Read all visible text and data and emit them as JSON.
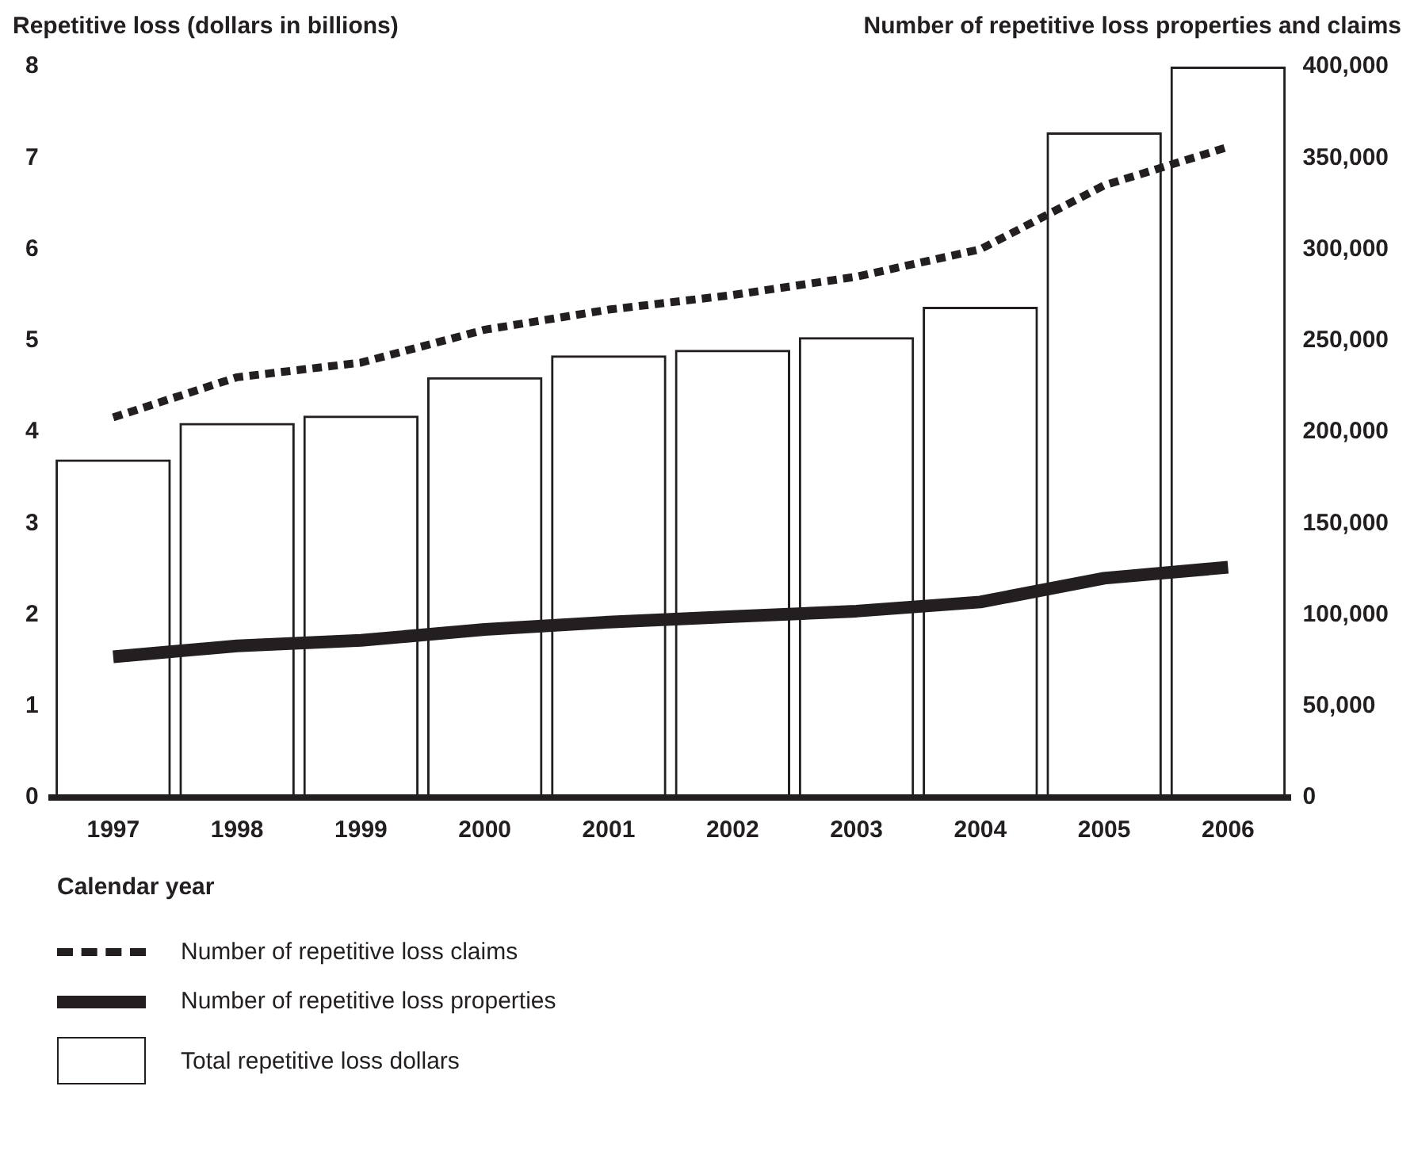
{
  "chart_data": {
    "type": "bar",
    "xlabel": "Calendar year",
    "ylabel": "Repetitive loss (dollars in billions)",
    "y2label": "Number of repetitive loss properties and claims",
    "categories": [
      "1997",
      "1998",
      "1999",
      "2000",
      "2001",
      "2002",
      "2003",
      "2004",
      "2005",
      "2006"
    ],
    "series": [
      {
        "name": "Number of repetitive loss claims",
        "type": "line",
        "axis": "y2",
        "line_style": "dashed",
        "color": "#231f20",
        "values": [
          208000,
          230000,
          238000,
          256000,
          267000,
          275000,
          285000,
          300000,
          335000,
          356000
        ]
      },
      {
        "name": "Number of repetitive loss properties",
        "type": "line",
        "axis": "y2",
        "line_style": "solid",
        "color": "#231f20",
        "values": [
          77000,
          83000,
          86000,
          92000,
          96000,
          99000,
          102000,
          107000,
          120000,
          126000
        ]
      },
      {
        "name": "Total repetitive loss dollars",
        "axis": "y",
        "color": "#231f20",
        "values": [
          3.7,
          4.1,
          4.18,
          4.6,
          4.84,
          4.9,
          5.04,
          5.37,
          7.28,
          8.0
        ]
      }
    ],
    "ylim": [
      0,
      8
    ],
    "yticks": [
      0,
      1,
      2,
      3,
      4,
      5,
      6,
      7,
      8
    ],
    "y2lim": [
      0,
      400000
    ],
    "y2ticks": [
      0,
      {
        "value": 50000,
        "label": "50,000"
      },
      {
        "value": 100000,
        "label": "100,000"
      },
      {
        "value": 150000,
        "label": "150,000"
      },
      {
        "value": 200000,
        "label": "200,000"
      },
      {
        "value": 250000,
        "label": "250,000"
      },
      {
        "value": 300000,
        "label": "300,000"
      },
      {
        "value": 350000,
        "label": "350,000"
      },
      {
        "value": 400000,
        "label": "400,000"
      }
    ],
    "grid": false,
    "legend": "bottom left",
    "marker": "none"
  }
}
